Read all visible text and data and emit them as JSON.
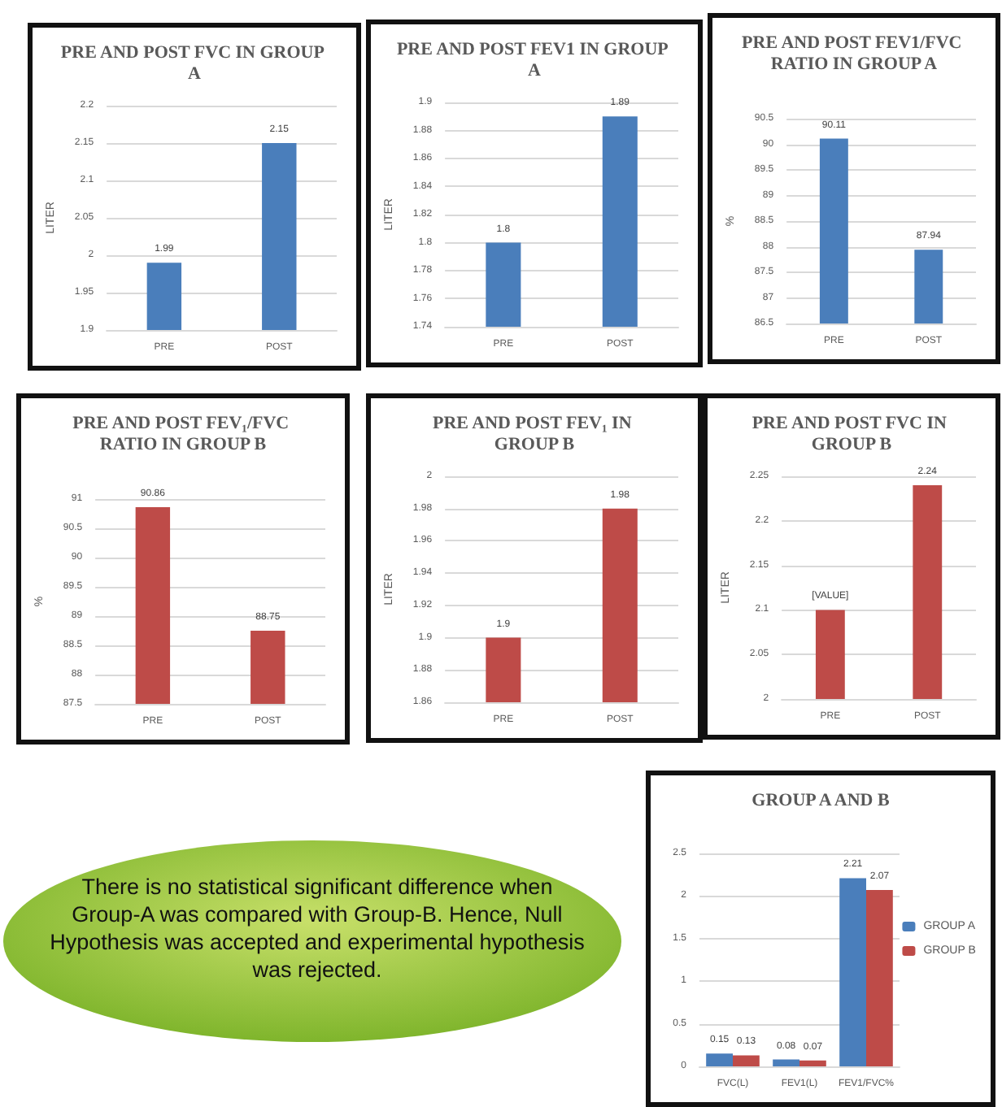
{
  "chart_data": [
    {
      "type": "bar",
      "title": "PRE AND POST FVC IN GROUP A",
      "ylabel": "LITER",
      "categories": [
        "PRE",
        "POST"
      ],
      "values": [
        1.99,
        2.15
      ],
      "color": "#4a7ebb",
      "ylim": [
        1.9,
        2.2
      ],
      "yticks": [
        1.9,
        1.95,
        2,
        2.05,
        2.1,
        2.15,
        2.2
      ],
      "grid": "y",
      "data_labels": true
    },
    {
      "type": "bar",
      "title": "PRE AND POST FEV1 IN GROUP A",
      "ylabel": "LITER",
      "categories": [
        "PRE",
        "POST"
      ],
      "values": [
        1.8,
        1.89
      ],
      "color": "#4a7ebb",
      "ylim": [
        1.74,
        1.9
      ],
      "yticks": [
        1.74,
        1.76,
        1.78,
        1.8,
        1.82,
        1.84,
        1.86,
        1.88,
        1.9
      ],
      "grid": "y",
      "data_labels": true
    },
    {
      "type": "bar",
      "title": "PRE AND POST FEV1/FVC RATIO IN GROUP A",
      "ylabel": "%",
      "categories": [
        "PRE",
        "POST"
      ],
      "values": [
        90.11,
        87.94
      ],
      "color": "#4a7ebb",
      "ylim": [
        86.5,
        90.5
      ],
      "yticks": [
        86.5,
        87,
        87.5,
        88,
        88.5,
        89,
        89.5,
        90,
        90.5
      ],
      "grid": "y",
      "data_labels": true
    },
    {
      "type": "bar",
      "title": "PRE AND POST FEV₁/FVC RATIO IN GROUP B",
      "ylabel": "%",
      "categories": [
        "PRE",
        "POST"
      ],
      "values": [
        90.86,
        88.75
      ],
      "color": "#be4b48",
      "ylim": [
        87.5,
        91
      ],
      "yticks": [
        87.5,
        88,
        88.5,
        89,
        89.5,
        90,
        90.5,
        91
      ],
      "grid": "y",
      "data_labels": true
    },
    {
      "type": "bar",
      "title": "PRE AND POST FEV₁ IN GROUP B",
      "ylabel": "LITER",
      "categories": [
        "PRE",
        "POST"
      ],
      "values": [
        1.9,
        1.98
      ],
      "color": "#be4b48",
      "ylim": [
        1.86,
        2
      ],
      "yticks": [
        1.86,
        1.88,
        1.9,
        1.92,
        1.94,
        1.96,
        1.98,
        2
      ],
      "grid": "y",
      "data_labels": true
    },
    {
      "type": "bar",
      "title": "PRE AND POST FVC IN GROUP B",
      "ylabel": "LITER",
      "categories": [
        "PRE",
        "POST"
      ],
      "values": [
        2.1,
        2.24
      ],
      "value_labels": [
        "[VALUE]",
        "2.24"
      ],
      "color": "#be4b48",
      "ylim": [
        2,
        2.25
      ],
      "yticks": [
        2,
        2.05,
        2.1,
        2.15,
        2.2,
        2.25
      ],
      "grid": "y"
    },
    {
      "type": "other",
      "annotations": [
        "There is no statistical significant difference when Group-A was compared with Group-B. Hence, Null Hypothesis was accepted and experimental hypothesis was rejected."
      ]
    },
    {
      "type": "bar",
      "title": "GROUP A AND B",
      "categories": [
        "FVC(L)",
        "FEV1(L)",
        "FEV1/FVC%"
      ],
      "series": [
        {
          "name": "GROUP A",
          "color": "#4a7ebb",
          "values": [
            0.15,
            0.08,
            2.21
          ]
        },
        {
          "name": "GROUP B",
          "color": "#be4b48",
          "values": [
            0.13,
            0.07,
            2.07
          ]
        }
      ],
      "ylim": [
        0,
        2.5
      ],
      "yticks": [
        0,
        0.5,
        1,
        1.5,
        2,
        2.5
      ],
      "grid": "y",
      "data_labels": true,
      "legend": "right"
    }
  ]
}
